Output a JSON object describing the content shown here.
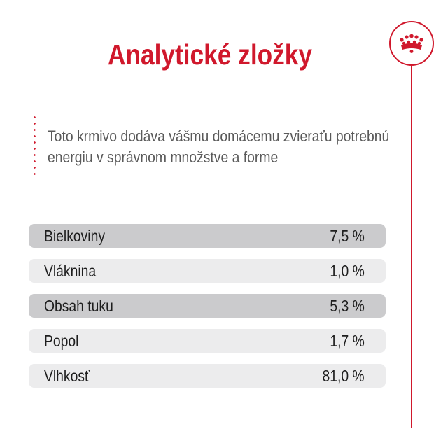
{
  "title": "Analytické zložky",
  "intro": "Toto krmivo dodáva vášmu domácemu zvieraťu potrebnú energiu v správnom množstve a forme",
  "brand": {
    "accent_color": "#d0182c",
    "logo_icon": "crown-icon"
  },
  "nutrients": [
    {
      "label": "Bielkoviny",
      "value": "7,5 %"
    },
    {
      "label": "Vláknina",
      "value": "1,0 %"
    },
    {
      "label": "Obsah tuku",
      "value": "5,3 %"
    },
    {
      "label": "Popol",
      "value": "1,7 %"
    },
    {
      "label": "Vlhkosť",
      "value": "81,0 %"
    }
  ]
}
